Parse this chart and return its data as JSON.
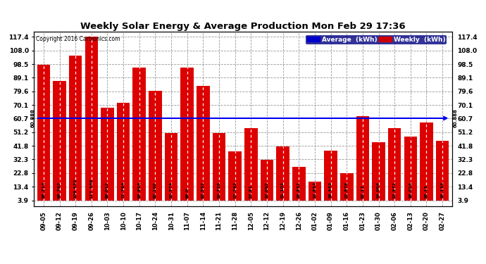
{
  "title": "Weekly Solar Energy & Average Production Mon Feb 29 17:36",
  "copyright": "Copyright 2016 Cartronics.com",
  "categories": [
    "09-05",
    "09-12",
    "09-19",
    "09-26",
    "10-03",
    "10-10",
    "10-17",
    "10-24",
    "10-31",
    "11-07",
    "11-14",
    "11-21",
    "11-28",
    "12-05",
    "12-12",
    "12-19",
    "12-26",
    "01-02",
    "01-09",
    "01-16",
    "01-23",
    "01-30",
    "02-06",
    "02-13",
    "02-20",
    "02-27"
  ],
  "values": [
    98.214,
    86.762,
    104.432,
    117.448,
    68.012,
    71.794,
    95.954,
    80.102,
    50.574,
    96.0,
    83.552,
    50.728,
    37.792,
    53.91,
    32.062,
    41.102,
    26.932,
    16.854,
    38.442,
    22.878,
    62.12,
    44.064,
    53.972,
    48.024,
    58.15,
    45.136
  ],
  "average": 60.888,
  "bar_color": "#dd0000",
  "avg_line_color": "#0000ee",
  "bg_color": "#ffffff",
  "plot_bg_color": "#ffffff",
  "grid_color": "#999999",
  "ytick_vals": [
    3.9,
    13.4,
    22.8,
    32.3,
    41.8,
    51.2,
    60.7,
    70.1,
    79.6,
    89.1,
    98.5,
    108.0,
    117.4
  ],
  "ymin": 3.9,
  "ymax": 121.0,
  "legend_avg_color": "#0000cc",
  "legend_weekly_color": "#cc0000",
  "avg_label": "Average  (kWh)",
  "weekly_label": "Weekly  (kWh)"
}
